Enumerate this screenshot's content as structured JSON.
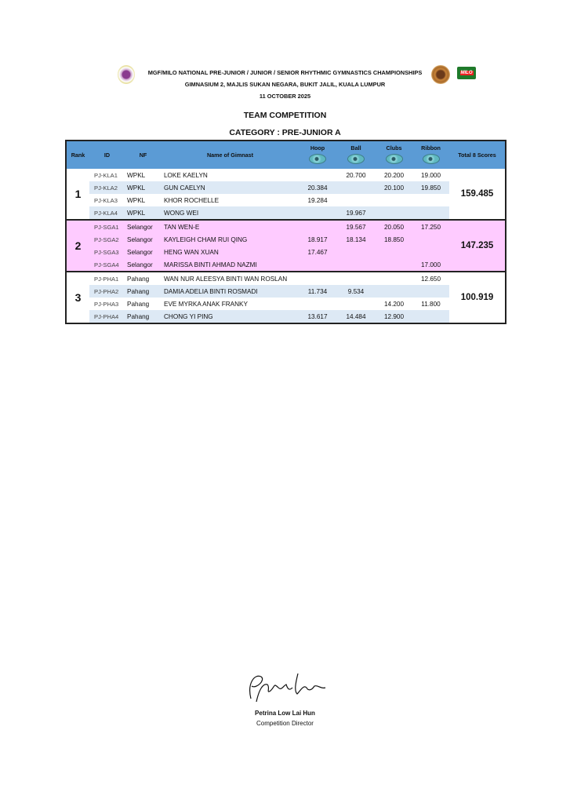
{
  "header": {
    "line1": "MGF/MILO NATIONAL PRE-JUNIOR / JUNIOR / SENIOR RHYTHMIC GYMNASTICS CHAMPIONSHIPS",
    "line2": "GIMNASIUM 2, MAJLIS SUKAN NEGARA, BUKIT JALIL, KUALA LUMPUR",
    "date": "11 OCTOBER 2025",
    "title": "TEAM COMPETITION",
    "category": "CATEGORY : PRE-JUNIOR A",
    "logo_milo": "MILO"
  },
  "columns": {
    "rank": "Rank",
    "id": "ID",
    "nf": "NF",
    "name": "Name of Gimnast",
    "hoop": "Hoop",
    "ball": "Ball",
    "clubs": "Clubs",
    "ribbon": "Ribbon",
    "total": "Total 8 Scores"
  },
  "teams": [
    {
      "rank": "1",
      "total": "159.485",
      "rows": [
        {
          "id": "PJ-KLA1",
          "nf": "WPKL",
          "name": "LOKE KAELYN",
          "hoop": "",
          "ball": "20.700",
          "clubs": "20.200",
          "ribbon": "19.000"
        },
        {
          "id": "PJ-KLA2",
          "nf": "WPKL",
          "name": "GUN CAELYN",
          "hoop": "20.384",
          "ball": "",
          "clubs": "20.100",
          "ribbon": "19.850"
        },
        {
          "id": "PJ-KLA3",
          "nf": "WPKL",
          "name": "KHOR ROCHELLE",
          "hoop": "19.284",
          "ball": "",
          "clubs": "",
          "ribbon": ""
        },
        {
          "id": "PJ-KLA4",
          "nf": "WPKL",
          "name": "WONG WEI",
          "hoop": "",
          "ball": "19.967",
          "clubs": "",
          "ribbon": ""
        }
      ]
    },
    {
      "rank": "2",
      "total": "147.235",
      "rows": [
        {
          "id": "PJ-SGA1",
          "nf": "Selangor",
          "name": "TAN WEN-E",
          "hoop": "",
          "ball": "19.567",
          "clubs": "20.050",
          "ribbon": "17.250"
        },
        {
          "id": "PJ-SGA2",
          "nf": "Selangor",
          "name": "KAYLEIGH CHAM RUI QING",
          "hoop": "18.917",
          "ball": "18.134",
          "clubs": "18.850",
          "ribbon": ""
        },
        {
          "id": "PJ-SGA3",
          "nf": "Selangor",
          "name": "HENG WAN XUAN",
          "hoop": "17.467",
          "ball": "",
          "clubs": "",
          "ribbon": ""
        },
        {
          "id": "PJ-SGA4",
          "nf": "Selangor",
          "name": "MARISSA BINTI AHMAD NAZMI",
          "hoop": "",
          "ball": "",
          "clubs": "",
          "ribbon": "17.000"
        }
      ]
    },
    {
      "rank": "3",
      "total": "100.919",
      "rows": [
        {
          "id": "PJ-PHA1",
          "nf": "Pahang",
          "name": "WAN NUR ALEESYA BINTI WAN ROSLAN",
          "hoop": "",
          "ball": "",
          "clubs": "",
          "ribbon": "12.650"
        },
        {
          "id": "PJ-PHA2",
          "nf": "Pahang",
          "name": "DAMIA ADELIA BINTI ROSMADI",
          "hoop": "11.734",
          "ball": "9.534",
          "clubs": "",
          "ribbon": ""
        },
        {
          "id": "PJ-PHA3",
          "nf": "Pahang",
          "name": "EVE MYRKA ANAK FRANKY",
          "hoop": "",
          "ball": "",
          "clubs": "14.200",
          "ribbon": "11.800"
        },
        {
          "id": "PJ-PHA4",
          "nf": "Pahang",
          "name": "CHONG YI PING",
          "hoop": "13.617",
          "ball": "14.484",
          "clubs": "12.900",
          "ribbon": ""
        }
      ]
    }
  ],
  "signature": {
    "name": "Petrina Low Lai Hun",
    "role": "Competition Director",
    "signature_text": "Petrina Low"
  },
  "colors": {
    "header_blue": "#5b9bd5",
    "stripe": "#dde9f5",
    "team2_pink": "#fecbff"
  }
}
